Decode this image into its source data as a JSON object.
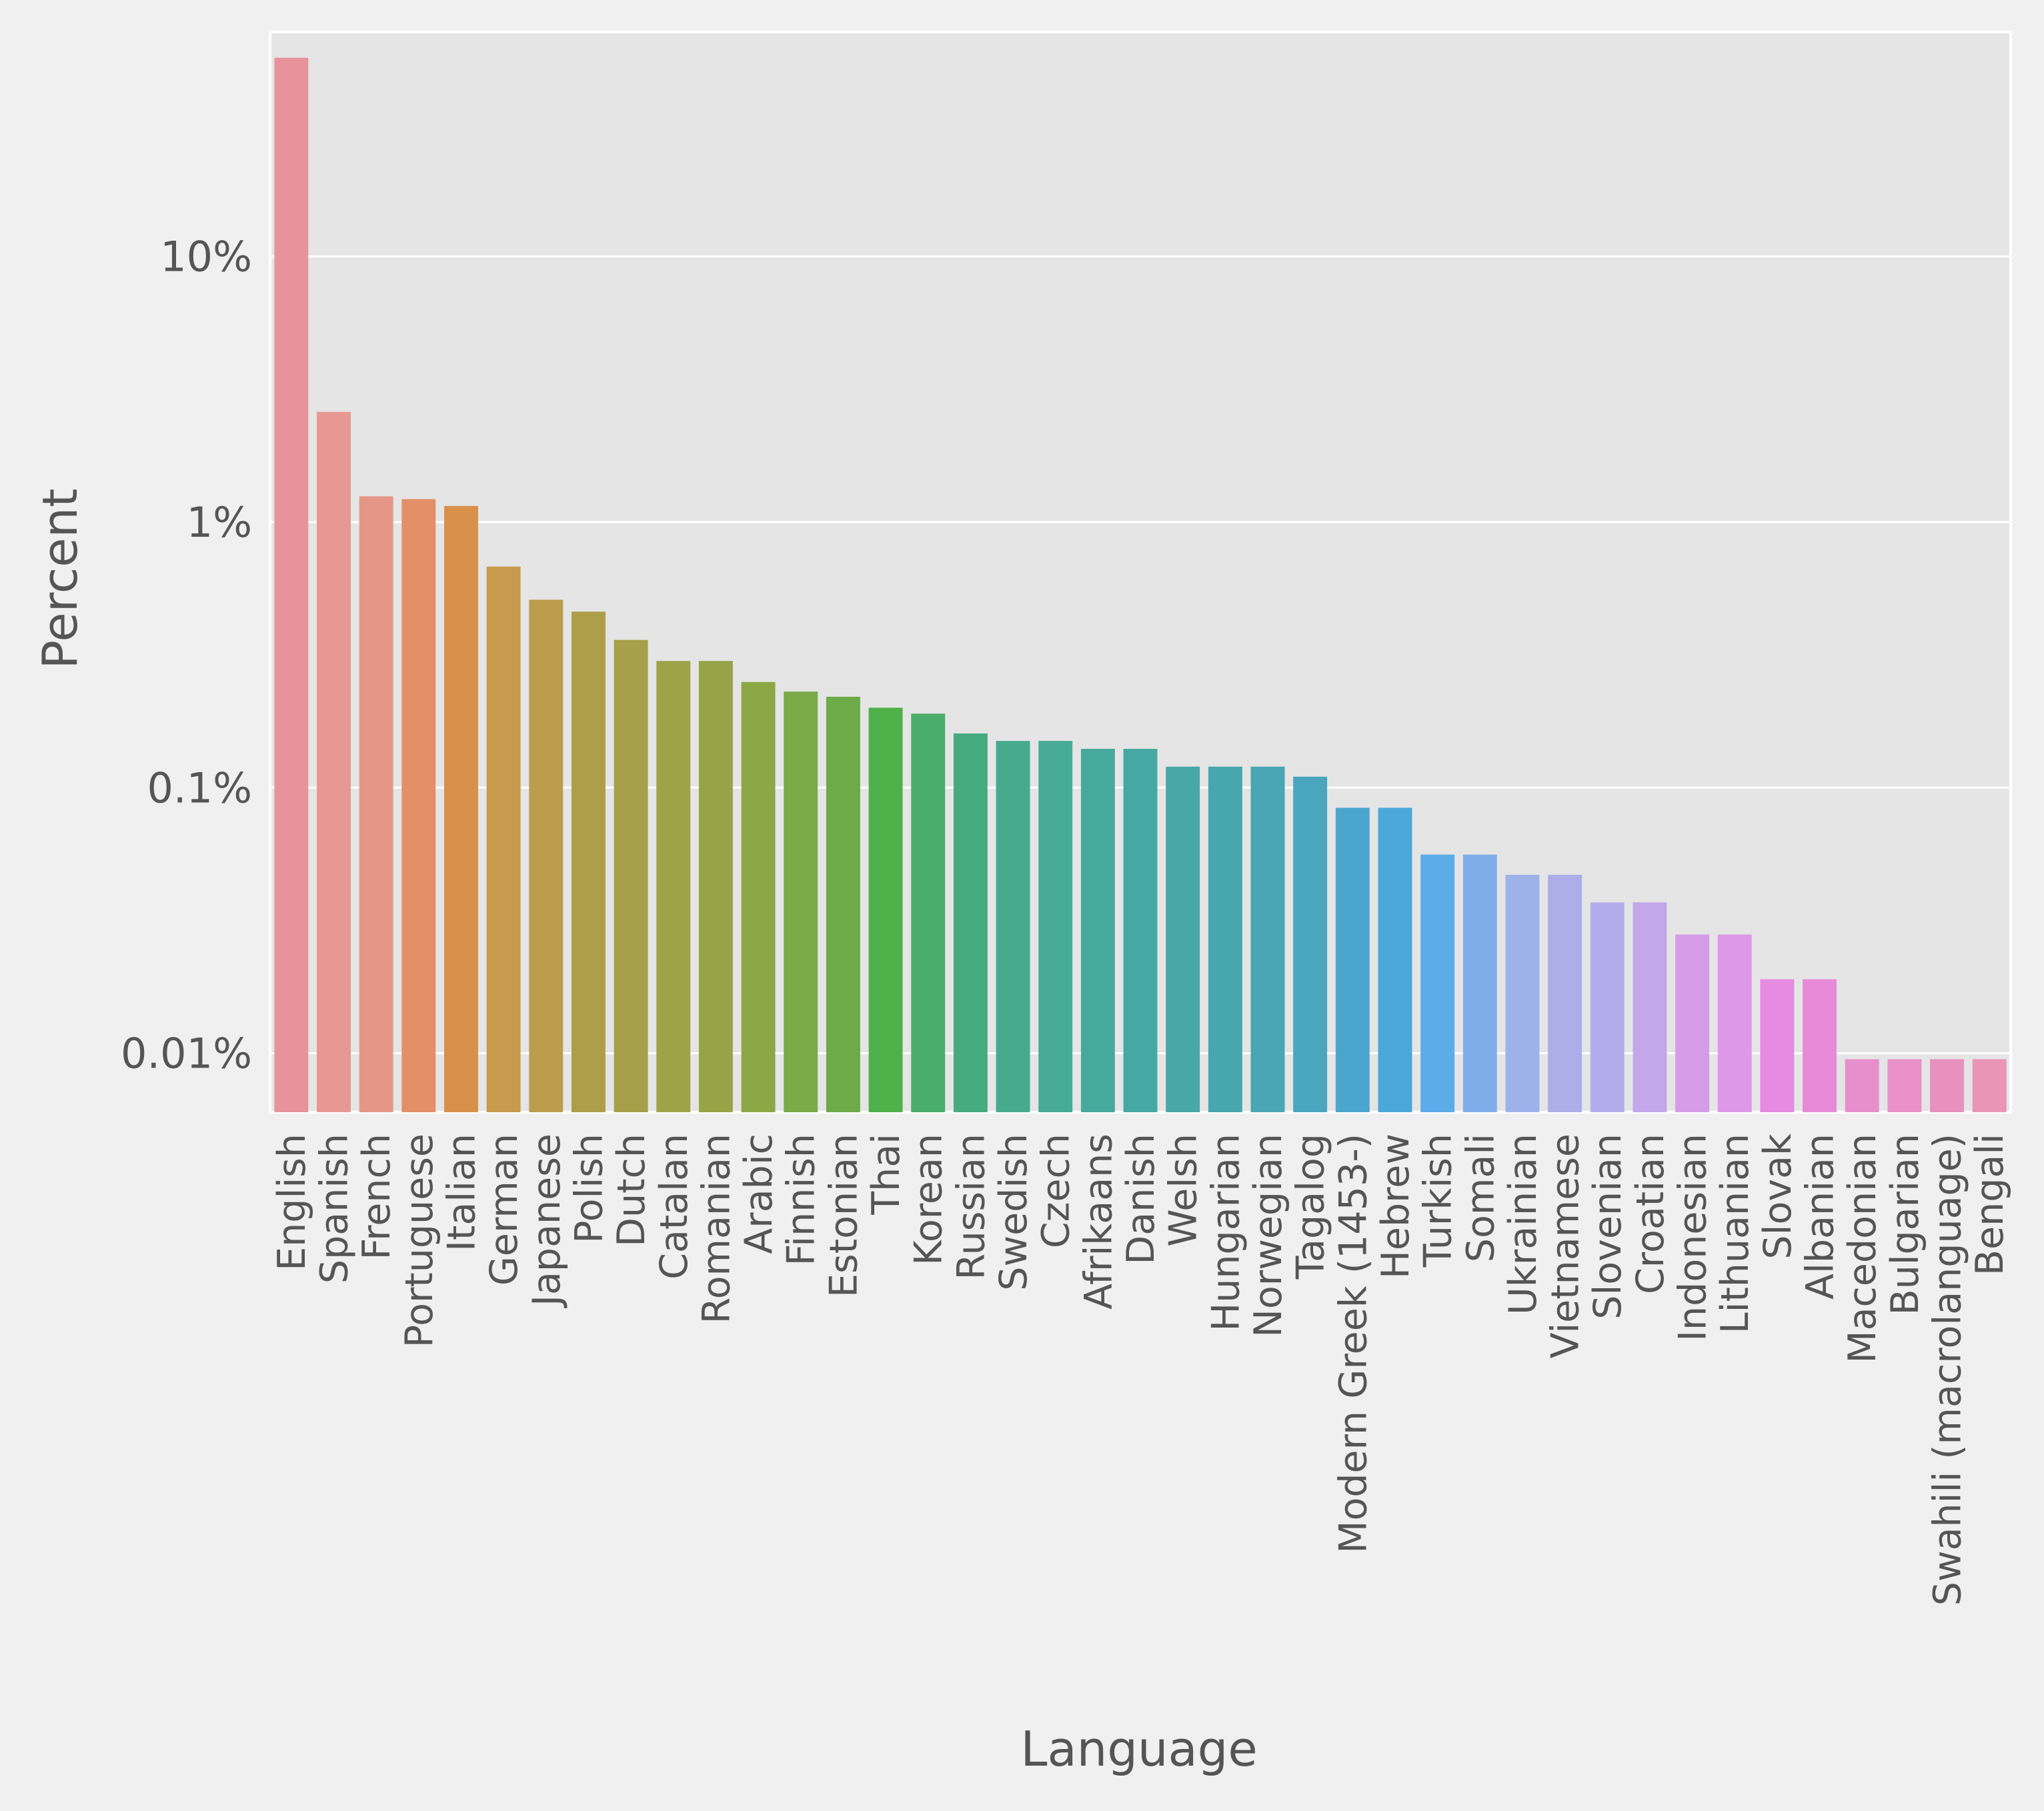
{
  "chart_data": {
    "type": "bar",
    "xlabel": "Language",
    "ylabel": "Percent",
    "yscale": "log",
    "ylim": [
      0.006,
      70
    ],
    "grid": true,
    "legend": "none",
    "y_ticks": [
      {
        "value": 0.01,
        "label": "0.01%"
      },
      {
        "value": 0.1,
        "label": "0.1%"
      },
      {
        "value": 1,
        "label": "1%"
      },
      {
        "value": 10,
        "label": "10%"
      }
    ],
    "categories": [
      "English",
      "Spanish",
      "French",
      "Portuguese",
      "Italian",
      "German",
      "Japanese",
      "Polish",
      "Dutch",
      "Catalan",
      "Romanian",
      "Arabic",
      "Finnish",
      "Estonian",
      "Thai",
      "Korean",
      "Russian",
      "Swedish",
      "Czech",
      "Afrikaans",
      "Danish",
      "Welsh",
      "Hungarian",
      "Norwegian",
      "Tagalog",
      "Modern Greek (1453-)",
      "Hebrew",
      "Turkish",
      "Somali",
      "Ukrainian",
      "Vietnamese",
      "Slovenian",
      "Croatian",
      "Indonesian",
      "Lithuanian",
      "Slovak",
      "Albanian",
      "Macedonian",
      "Bulgarian",
      "Swahili (macrolanguage)",
      "Bengali"
    ],
    "values": [
      56,
      2.6,
      1.25,
      1.22,
      1.15,
      0.68,
      0.51,
      0.46,
      0.36,
      0.3,
      0.3,
      0.25,
      0.23,
      0.22,
      0.2,
      0.19,
      0.16,
      0.15,
      0.15,
      0.14,
      0.14,
      0.12,
      0.12,
      0.12,
      0.11,
      0.084,
      0.084,
      0.056,
      0.056,
      0.047,
      0.047,
      0.037,
      0.037,
      0.028,
      0.028,
      0.019,
      0.019,
      0.0095,
      0.0095,
      0.0095,
      0.0095
    ],
    "colors": [
      "#e8939c",
      "#e89893",
      "#e59686",
      "#e39068",
      "#d8904a",
      "#c89a4e",
      "#bb9d4c",
      "#ad9e4a",
      "#a5a049",
      "#9ea348",
      "#96a447",
      "#8ca846",
      "#7aab48",
      "#6daa48",
      "#50b049",
      "#4aae6a",
      "#47ab80",
      "#46ab8e",
      "#46aa96",
      "#46a99c",
      "#46a8a2",
      "#48a7a8",
      "#48a6ad",
      "#49a6b2",
      "#4aa6bf",
      "#4aa6cf",
      "#4ba8db",
      "#5badea",
      "#7fade9",
      "#9eb2ea",
      "#adadea",
      "#b4acea",
      "#c2a7ea",
      "#d59ce8",
      "#de98e8",
      "#e68ae2",
      "#e78ad8",
      "#e78fcd",
      "#e890c7",
      "#e891bf",
      "#e895b6"
    ]
  }
}
